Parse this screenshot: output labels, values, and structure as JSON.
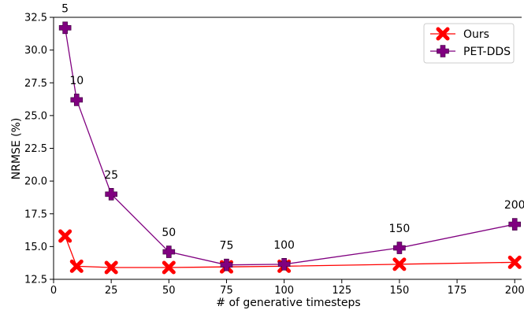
{
  "chart_data": {
    "type": "line",
    "title": "",
    "xlabel": "# of generative timesteps",
    "ylabel": "NRMSE (%)",
    "xlim": [
      0,
      203
    ],
    "ylim": [
      12.5,
      32.5
    ],
    "x_ticks": [
      0,
      25,
      50,
      75,
      100,
      125,
      150,
      175,
      200
    ],
    "y_ticks": [
      12.5,
      15.0,
      17.5,
      20.0,
      22.5,
      25.0,
      27.5,
      30.0,
      32.5
    ],
    "y_tick_labels": [
      "12.5",
      "15.0",
      "17.5",
      "20.0",
      "22.5",
      "25.0",
      "27.5",
      "30.0",
      "32.5"
    ],
    "grid": false,
    "legend_position": "top-right",
    "series": [
      {
        "name": "Ours",
        "color": "#ff0000",
        "marker": "x",
        "x": [
          5,
          10,
          25,
          50,
          75,
          100,
          150,
          200
        ],
        "y": [
          15.8,
          13.5,
          13.4,
          13.4,
          13.45,
          13.5,
          13.65,
          13.8
        ]
      },
      {
        "name": "PET-DDS",
        "color": "#800080",
        "marker": "plus",
        "x": [
          5,
          10,
          25,
          50,
          75,
          100,
          150,
          200
        ],
        "y": [
          31.7,
          26.2,
          19.0,
          14.6,
          13.6,
          13.65,
          14.9,
          16.7
        ]
      }
    ],
    "point_labels": [
      {
        "text": "5",
        "x": 5,
        "y": 31.7
      },
      {
        "text": "10",
        "x": 10,
        "y": 26.2
      },
      {
        "text": "25",
        "x": 25,
        "y": 19.0
      },
      {
        "text": "50",
        "x": 50,
        "y": 14.6
      },
      {
        "text": "75",
        "x": 75,
        "y": 13.6
      },
      {
        "text": "100",
        "x": 100,
        "y": 13.65
      },
      {
        "text": "150",
        "x": 150,
        "y": 14.9
      },
      {
        "text": "200",
        "x": 200,
        "y": 16.7
      }
    ]
  }
}
